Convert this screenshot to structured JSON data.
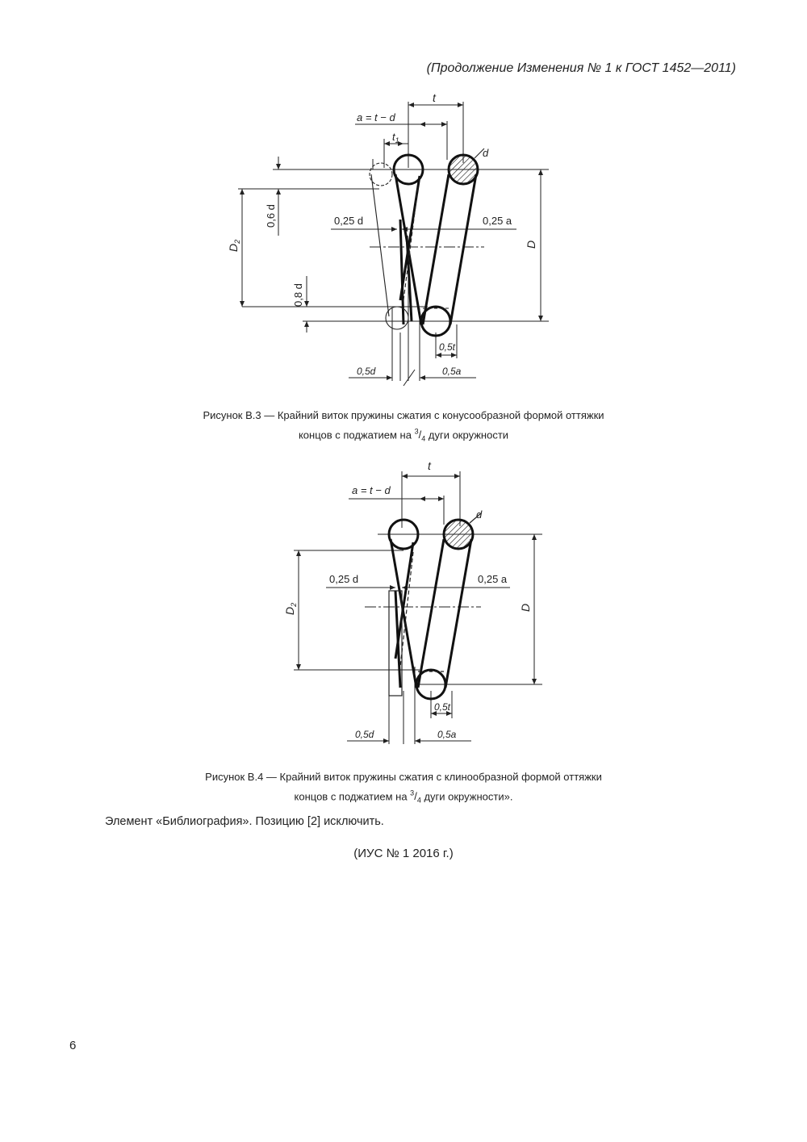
{
  "header": {
    "text": "(Продолжение Изменения № 1 к ГОСТ 1452—2011)"
  },
  "figure3": {
    "labels": {
      "t": "t",
      "a_eq": "a = t − d",
      "t1": "t",
      "t1_sub": "1",
      "d": "d",
      "d06": "0,6 d",
      "d025": "0,25 d",
      "a025": "0,25 a",
      "D2": "D",
      "D2_sub": "2",
      "D": "D",
      "d08": "0,8 d",
      "t05": "0,5t",
      "d05": "0,5d",
      "a05": "0,5a"
    },
    "caption_line1": "Рисунок В.3 — Крайний виток пружины сжатия с конусообразной формой оттяжки",
    "caption_line2_a": "концов с поджатием на ",
    "caption_line2_num": "3",
    "caption_line2_den": "4",
    "caption_line2_b": " дуги окружности"
  },
  "figure4": {
    "labels": {
      "t": "t",
      "a_eq": "a = t − d",
      "d": "d",
      "d025": "0,25 d",
      "a025": "0,25 a",
      "D2": "D",
      "D2_sub": "2",
      "D": "D",
      "t05": "0,5t",
      "d05": "0,5d",
      "a05": "0,5a"
    },
    "caption_line1": "Рисунок В.4 — Крайний виток пружины сжатия с клинообразной формой оттяжки",
    "caption_line2_a": "концов с поджатием на ",
    "caption_line2_num": "3",
    "caption_line2_den": "4",
    "caption_line2_b": " дуги окружности».",
    "frac_sep": "/"
  },
  "paragraph": "Элемент «Библиография». Позицию [2] исключить.",
  "ius": "(ИУС № 1  2016 г.)",
  "page_number": "6"
}
